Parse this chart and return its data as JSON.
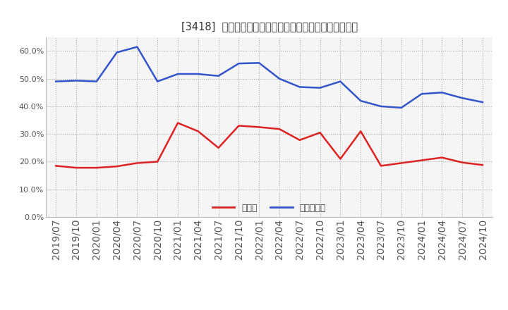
{
  "title": "[3418]  現須金、有利子負債の総資産に対する比率の推移",
  "x_labels": [
    "2019/07",
    "2019/10",
    "2020/01",
    "2020/04",
    "2020/07",
    "2020/10",
    "2021/01",
    "2021/04",
    "2021/07",
    "2021/10",
    "2022/01",
    "2022/04",
    "2022/07",
    "2022/10",
    "2023/01",
    "2023/04",
    "2023/07",
    "2023/10",
    "2024/01",
    "2024/04",
    "2024/07",
    "2024/10"
  ],
  "cash": [
    0.185,
    0.178,
    0.178,
    0.183,
    0.195,
    0.2,
    0.34,
    0.31,
    0.25,
    0.33,
    0.325,
    0.318,
    0.278,
    0.305,
    0.21,
    0.31,
    0.185,
    0.195,
    0.205,
    0.215,
    0.197,
    0.188
  ],
  "debt": [
    0.49,
    0.493,
    0.49,
    0.595,
    0.615,
    0.49,
    0.517,
    0.517,
    0.51,
    0.555,
    0.557,
    0.5,
    0.47,
    0.467,
    0.49,
    0.42,
    0.4,
    0.395,
    0.445,
    0.45,
    0.43,
    0.415
  ],
  "cash_color": "#dd2222",
  "debt_color": "#3355cc",
  "bg_color": "#ffffff",
  "plot_bg_color": "#f5f5f5",
  "grid_color": "#aaaaaa",
  "legend_cash": "現須金",
  "legend_debt": "有利子負債",
  "ylim": [
    0.0,
    0.65
  ],
  "yticks": [
    0.0,
    0.1,
    0.2,
    0.3,
    0.4,
    0.5,
    0.6
  ]
}
